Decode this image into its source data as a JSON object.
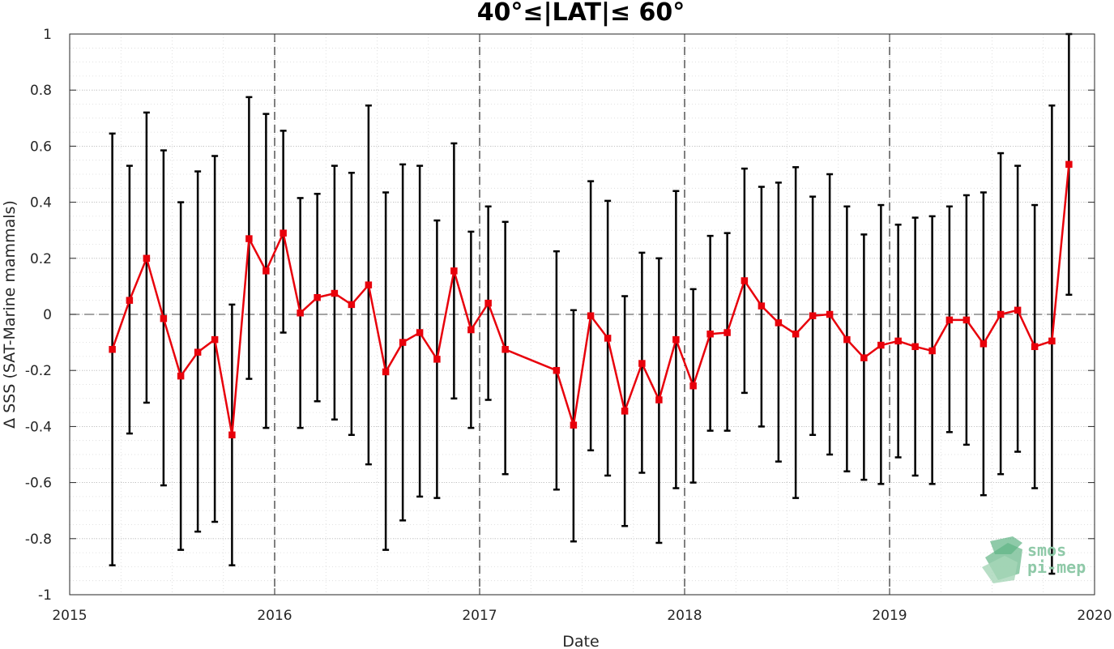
{
  "chart_data": {
    "type": "line",
    "title": "40°≤|LAT|≤ 60°",
    "xlabel": "Date",
    "ylabel": "Δ SSS (SAT-Marine mammals)",
    "xlim": [
      2015,
      2020
    ],
    "ylim": [
      -1,
      1
    ],
    "x_ticks": [
      2015,
      2016,
      2017,
      2018,
      2019,
      2020
    ],
    "x_tick_labels": [
      "2015",
      "2016",
      "2017",
      "2018",
      "2019",
      "2020"
    ],
    "y_ticks": [
      1,
      0.8,
      0.6,
      0.4,
      0.2,
      0,
      -0.2,
      -0.4,
      -0.6,
      -0.8,
      -1
    ],
    "y_tick_labels": [
      "1",
      "0.8",
      "0.6",
      "0.4",
      "0.2",
      "0",
      "-0.2",
      "-0.4",
      "-0.6",
      "-0.8",
      "-1"
    ],
    "grid": true,
    "minor_grid": true,
    "reference_line": 0,
    "year_separators": [
      2016,
      2017,
      2018,
      2019
    ],
    "series": [
      {
        "color": "#e8000b",
        "marker": "square",
        "errorbar_color": "#000000",
        "x": [
          2015.208,
          2015.292,
          2015.375,
          2015.458,
          2015.542,
          2015.625,
          2015.708,
          2015.792,
          2015.875,
          2015.958,
          2016.042,
          2016.125,
          2016.208,
          2016.292,
          2016.375,
          2016.458,
          2016.542,
          2016.625,
          2016.708,
          2016.792,
          2016.875,
          2016.958,
          2017.042,
          2017.125,
          2017.375,
          2017.458,
          2017.542,
          2017.625,
          2017.708,
          2017.792,
          2017.875,
          2017.958,
          2018.042,
          2018.125,
          2018.208,
          2018.292,
          2018.375,
          2018.458,
          2018.542,
          2018.625,
          2018.708,
          2018.792,
          2018.875,
          2018.958,
          2019.042,
          2019.125,
          2019.208,
          2019.292,
          2019.375,
          2019.458,
          2019.542,
          2019.625,
          2019.708,
          2019.792,
          2019.875
        ],
        "y": [
          -0.125,
          0.05,
          0.2,
          -0.015,
          -0.22,
          -0.135,
          -0.09,
          -0.43,
          0.27,
          0.155,
          0.29,
          0.005,
          0.06,
          0.075,
          0.035,
          0.105,
          -0.205,
          -0.1,
          -0.065,
          -0.16,
          0.155,
          -0.055,
          0.04,
          -0.125,
          -0.2,
          -0.395,
          -0.005,
          -0.085,
          -0.345,
          -0.175,
          -0.305,
          -0.09,
          -0.255,
          -0.07,
          -0.065,
          0.12,
          0.03,
          -0.03,
          -0.07,
          -0.005,
          0.0,
          -0.09,
          -0.155,
          -0.11,
          -0.095,
          -0.115,
          -0.13,
          -0.02,
          -0.02,
          -0.105,
          0.0,
          0.015,
          -0.115,
          -0.095,
          0.535
        ],
        "lower": [
          -0.895,
          -0.425,
          -0.315,
          -0.61,
          -0.84,
          -0.775,
          -0.74,
          -0.895,
          -0.23,
          -0.405,
          -0.065,
          -0.405,
          -0.31,
          -0.375,
          -0.43,
          -0.535,
          -0.84,
          -0.735,
          -0.65,
          -0.655,
          -0.3,
          -0.405,
          -0.305,
          -0.57,
          -0.625,
          -0.81,
          -0.485,
          -0.575,
          -0.755,
          -0.565,
          -0.815,
          -0.62,
          -0.6,
          -0.415,
          -0.415,
          -0.28,
          -0.4,
          -0.525,
          -0.655,
          -0.43,
          -0.5,
          -0.56,
          -0.59,
          -0.605,
          -0.51,
          -0.575,
          -0.605,
          -0.42,
          -0.465,
          -0.645,
          -0.57,
          -0.49,
          -0.62,
          -0.925,
          0.07
        ],
        "upper": [
          0.645,
          0.53,
          0.72,
          0.585,
          0.4,
          0.51,
          0.565,
          0.035,
          0.775,
          0.715,
          0.655,
          0.415,
          0.43,
          0.53,
          0.505,
          0.745,
          0.435,
          0.535,
          0.53,
          0.335,
          0.61,
          0.295,
          0.385,
          0.33,
          0.225,
          0.015,
          0.475,
          0.405,
          0.065,
          0.22,
          0.2,
          0.44,
          0.09,
          0.28,
          0.29,
          0.52,
          0.455,
          0.47,
          0.525,
          0.42,
          0.5,
          0.385,
          0.285,
          0.39,
          0.32,
          0.345,
          0.35,
          0.385,
          0.425,
          0.435,
          0.575,
          0.53,
          0.39,
          0.745,
          1.0
        ]
      }
    ]
  },
  "logo": {
    "line1": "smos",
    "line2": "pi-mep"
  },
  "colors": {
    "series": "#e8000b",
    "errorbar": "#000000",
    "logo": "#8fc9a8"
  }
}
